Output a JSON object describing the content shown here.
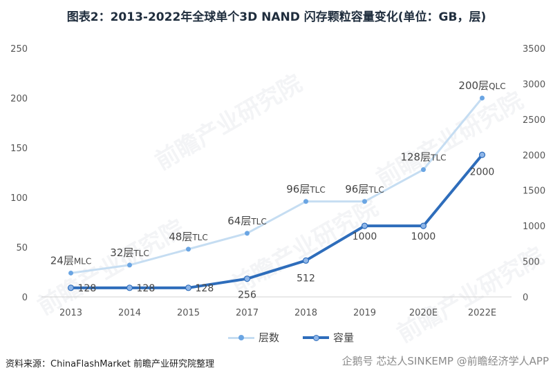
{
  "title": "图表2：2013-2022年全球单个3D NAND 闪存颗粒容量变化(单位：GB，层)",
  "source": "资料来源：ChinaFlashMarket 前瞻产业研究院整理",
  "watermark": "企鹅号 芯达人SINKEMP @前瞻经济学人APP",
  "chart_data": {
    "type": "line",
    "categories": [
      "2013",
      "2014",
      "2015",
      "2017",
      "2018",
      "2019",
      "2020E",
      "2022E"
    ],
    "series": [
      {
        "name": "层数",
        "axis": "left",
        "color": "#c5ddf2",
        "values": [
          24,
          32,
          48,
          64,
          96,
          96,
          128,
          200
        ],
        "labels": [
          "24层MLC",
          "32层TLC",
          "48层TLC",
          "64层TLC",
          "96层TLC",
          "96层TLC",
          "128层TLC",
          "200层QLC"
        ]
      },
      {
        "name": "容量",
        "axis": "right",
        "color": "#2e6dbb",
        "values": [
          128,
          128,
          128,
          256,
          512,
          1000,
          1000,
          2000
        ],
        "labels": [
          "128",
          "128",
          "128",
          "256",
          "512",
          "1000",
          "1000",
          "2000"
        ]
      }
    ],
    "y_left": {
      "min": 0,
      "max": 250,
      "ticks": [
        "0",
        "50",
        "100",
        "150",
        "200",
        "250"
      ]
    },
    "y_right": {
      "min": 0,
      "max": 3500,
      "ticks": [
        "0",
        "500",
        "1000",
        "1500",
        "2000",
        "2500",
        "3000",
        "3500"
      ]
    },
    "grid": false,
    "legend": "bottom"
  }
}
